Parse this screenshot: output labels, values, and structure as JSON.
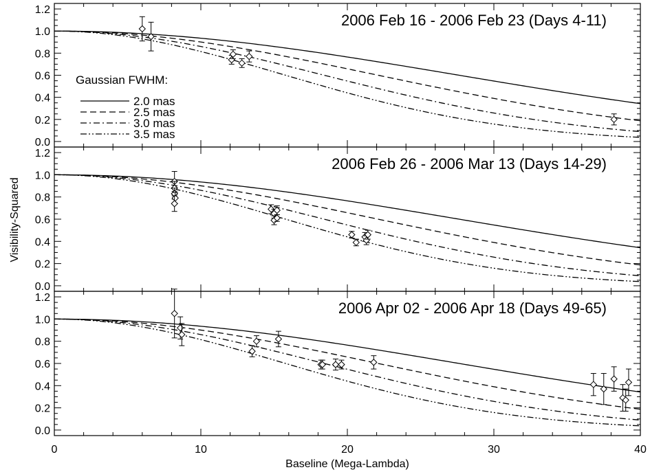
{
  "chart_data": {
    "type": "scatter",
    "xlabel": "Baseline (Mega-Lambda)",
    "ylabel": "Visibility-Squared",
    "xlim": [
      0,
      40
    ],
    "ylim": [
      -0.05,
      1.25
    ],
    "x_ticks": [
      0,
      10,
      20,
      30,
      40
    ],
    "x_tick_labels": [
      "0",
      "10",
      "20",
      "30",
      "40"
    ],
    "y_ticks": [
      0.0,
      0.2,
      0.4,
      0.6,
      0.8,
      1.0,
      1.2
    ],
    "y_tick_labels": [
      "0.0",
      "0.2",
      "0.4",
      "0.6",
      "0.8",
      "1.0",
      "1.2"
    ],
    "grid": false,
    "model_curves": {
      "description_label": "Gaussian FWHM:",
      "curves": [
        {
          "name": "2.0 mas",
          "fwhm_mas": 2.0,
          "dash": "solid"
        },
        {
          "name": "2.5 mas",
          "fwhm_mas": 2.5,
          "dash": "dashed"
        },
        {
          "name": "3.0 mas",
          "fwhm_mas": 3.0,
          "dash": "dash-dot"
        },
        {
          "name": "3.5 mas",
          "fwhm_mas": 3.5,
          "dash": "dash-dot-dot"
        }
      ]
    },
    "panels": [
      {
        "title": "2006 Feb 16 - 2006 Feb 23 (Days 4-11)",
        "show_legend": true,
        "points": [
          {
            "x": 6.0,
            "y": 1.02,
            "err": 0.11
          },
          {
            "x": 6.6,
            "y": 0.95,
            "err": 0.13
          },
          {
            "x": 12.1,
            "y": 0.74,
            "err": 0.04
          },
          {
            "x": 12.2,
            "y": 0.79,
            "err": 0.04
          },
          {
            "x": 12.8,
            "y": 0.71,
            "err": 0.04
          },
          {
            "x": 13.3,
            "y": 0.77,
            "err": 0.05
          },
          {
            "x": 38.2,
            "y": 0.2,
            "err": 0.05
          }
        ]
      },
      {
        "title": "2006 Feb 26 - 2006 Mar 13 (Days 14-29)",
        "show_legend": false,
        "points": [
          {
            "x": 8.2,
            "y": 0.94,
            "err": 0.09
          },
          {
            "x": 8.2,
            "y": 0.88,
            "err": 0.06
          },
          {
            "x": 8.2,
            "y": 0.83,
            "err": 0.05
          },
          {
            "x": 8.25,
            "y": 0.79,
            "err": 0.05
          },
          {
            "x": 8.2,
            "y": 0.74,
            "err": 0.07
          },
          {
            "x": 14.8,
            "y": 0.69,
            "err": 0.04
          },
          {
            "x": 15.0,
            "y": 0.65,
            "err": 0.04
          },
          {
            "x": 15.2,
            "y": 0.68,
            "err": 0.04
          },
          {
            "x": 15.0,
            "y": 0.59,
            "err": 0.04
          },
          {
            "x": 15.2,
            "y": 0.61,
            "err": 0.03
          },
          {
            "x": 20.3,
            "y": 0.46,
            "err": 0.03
          },
          {
            "x": 20.6,
            "y": 0.39,
            "err": 0.03
          },
          {
            "x": 21.2,
            "y": 0.44,
            "err": 0.04
          },
          {
            "x": 21.3,
            "y": 0.41,
            "err": 0.04
          },
          {
            "x": 21.4,
            "y": 0.46,
            "err": 0.04
          }
        ]
      },
      {
        "title": "2006 Apr 02 - 2006 Apr 18 (Days 49-65)",
        "show_legend": false,
        "points": [
          {
            "x": 8.2,
            "y": 1.05,
            "err": 0.22
          },
          {
            "x": 8.6,
            "y": 0.92,
            "err": 0.1
          },
          {
            "x": 8.7,
            "y": 0.86,
            "err": 0.1
          },
          {
            "x": 13.5,
            "y": 0.71,
            "err": 0.05
          },
          {
            "x": 13.8,
            "y": 0.8,
            "err": 0.05
          },
          {
            "x": 15.3,
            "y": 0.82,
            "err": 0.07
          },
          {
            "x": 18.2,
            "y": 0.59,
            "err": 0.04
          },
          {
            "x": 18.3,
            "y": 0.59,
            "err": 0.04
          },
          {
            "x": 19.2,
            "y": 0.59,
            "err": 0.05
          },
          {
            "x": 19.6,
            "y": 0.59,
            "err": 0.04
          },
          {
            "x": 21.8,
            "y": 0.61,
            "err": 0.06
          },
          {
            "x": 36.8,
            "y": 0.41,
            "err": 0.1
          },
          {
            "x": 37.5,
            "y": 0.37,
            "err": 0.14
          },
          {
            "x": 38.2,
            "y": 0.46,
            "err": 0.11
          },
          {
            "x": 38.8,
            "y": 0.29,
            "err": 0.12
          },
          {
            "x": 39.0,
            "y": 0.27,
            "err": 0.1
          },
          {
            "x": 39.2,
            "y": 0.43,
            "err": 0.12
          }
        ]
      }
    ]
  }
}
